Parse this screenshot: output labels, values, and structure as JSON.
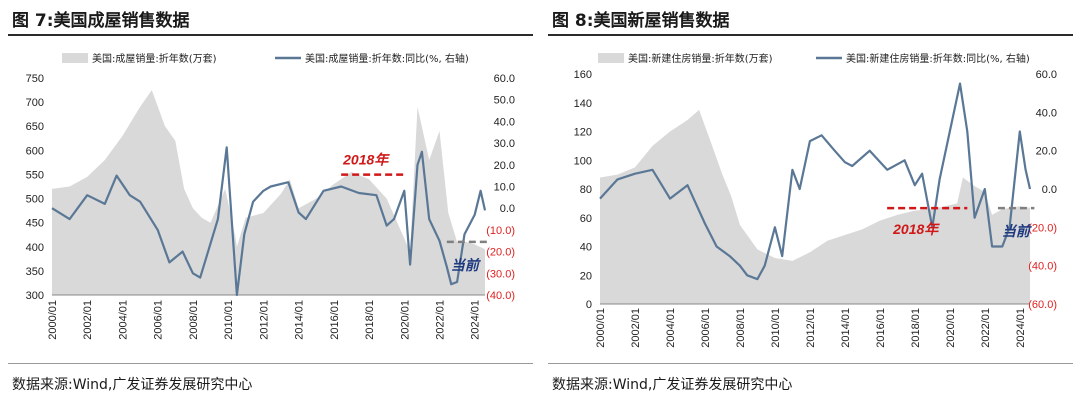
{
  "colors": {
    "line": "#5a7896",
    "area": "#d9d9d9",
    "anno_red": "#d01818",
    "anno_gray": "#808080",
    "anno_navy": "#1f3a80",
    "negative_tick": "#e02020"
  },
  "figures": [
    {
      "title": "图 7:美国成屋销售数据",
      "source": "数据来源:Wind,广发证券发展研究中心",
      "legend": [
        "美国:成屋销量:折年数(万套)",
        "美国:成屋销量:折年数:同比(%, 右轴)"
      ],
      "annotations": [
        "2018年",
        "当前"
      ],
      "x_tick_labels": [
        "2000/01",
        "2002/01",
        "2004/01",
        "2006/01",
        "2008/01",
        "2010/01",
        "2012/01",
        "2014/01",
        "2016/01",
        "2018/01",
        "2020/01",
        "2022/01",
        "2024/01"
      ],
      "y_left_tick_labels": [
        "750",
        "700",
        "650",
        "600",
        "550",
        "500",
        "450",
        "400",
        "350",
        "300"
      ],
      "y_right_tick_labels": [
        "60.0",
        "50.0",
        "40.0",
        "30.0",
        "20.0",
        "10.0",
        "0.0",
        "(10.0)",
        "(20.0)",
        "(30.0)",
        "(40.0)"
      ]
    },
    {
      "title": "图 8:美国新屋销售数据",
      "source": "数据来源:Wind,广发证券发展研究中心",
      "legend": [
        "美国:新建住房销量:折年数(万套)",
        "美国:新建住房销量:折年数:同比(%, 右轴)"
      ],
      "annotations": [
        "2018年",
        "当前"
      ],
      "x_tick_labels": [
        "2000/01",
        "2002/01",
        "2004/01",
        "2006/01",
        "2008/01",
        "2010/01",
        "2012/01",
        "2014/01",
        "2016/01",
        "2018/01",
        "2020/01",
        "2022/01",
        "2024/01"
      ],
      "y_left_tick_labels": [
        "160",
        "140",
        "120",
        "100",
        "80",
        "60",
        "40",
        "20",
        "0"
      ],
      "y_right_tick_labels": [
        "60.0",
        "40.0",
        "20.0",
        "0.0",
        "(20.0)",
        "(40.0)",
        "(60.0)"
      ]
    }
  ],
  "chart_data": [
    {
      "type": "area",
      "x_range": [
        "2000/01",
        "2024/08"
      ],
      "ylim_left": [
        300,
        750
      ],
      "ylim_right": [
        -40,
        60
      ],
      "series": [
        {
          "name": "美国:成屋销量:折年数(万套)",
          "axis": "left",
          "type": "area",
          "x": [
            "2000/01",
            "2001/01",
            "2002/01",
            "2003/01",
            "2004/01",
            "2005/01",
            "2005/09",
            "2006/06",
            "2007/01",
            "2007/07",
            "2008/01",
            "2008/07",
            "2009/01",
            "2009/11",
            "2010/06",
            "2010/07",
            "2011/01",
            "2012/01",
            "2013/01",
            "2013/07",
            "2014/01",
            "2015/01",
            "2016/01",
            "2017/01",
            "2018/01",
            "2019/01",
            "2020/05",
            "2020/10",
            "2021/06",
            "2022/01",
            "2022/07",
            "2023/01",
            "2023/07",
            "2024/01",
            "2024/08"
          ],
          "values": [
            520,
            525,
            545,
            580,
            630,
            690,
            725,
            650,
            620,
            520,
            480,
            460,
            450,
            520,
            420,
            400,
            460,
            470,
            510,
            540,
            480,
            500,
            530,
            555,
            540,
            500,
            390,
            690,
            580,
            640,
            470,
            410,
            410,
            405,
            395
          ]
        },
        {
          "name": "美国:成屋销量:折年数:同比(%, 右轴)",
          "axis": "right",
          "type": "line",
          "x": [
            "2000/01",
            "2001/01",
            "2002/01",
            "2003/01",
            "2003/09",
            "2004/06",
            "2005/01",
            "2006/01",
            "2006/09",
            "2007/06",
            "2008/01",
            "2008/06",
            "2009/06",
            "2009/12",
            "2010/07",
            "2010/12",
            "2011/06",
            "2012/01",
            "2012/06",
            "2013/06",
            "2014/01",
            "2014/06",
            "2015/06",
            "2016/06",
            "2017/06",
            "2018/06",
            "2019/01",
            "2019/06",
            "2020/01",
            "2020/05",
            "2020/10",
            "2021/01",
            "2021/06",
            "2022/01",
            "2022/06",
            "2022/09",
            "2023/01",
            "2023/06",
            "2024/01",
            "2024/05",
            "2024/08"
          ],
          "values": [
            0,
            -5,
            6,
            2,
            15,
            6,
            3,
            -10,
            -25,
            -20,
            -30,
            -32,
            -5,
            28,
            -40,
            -12,
            3,
            8,
            10,
            12,
            -2,
            -5,
            8,
            10,
            7,
            6,
            -8,
            -5,
            8,
            -26,
            20,
            26,
            -5,
            -15,
            -27,
            -35,
            -34,
            -12,
            -3,
            8,
            -1
          ]
        }
      ],
      "annotations": [
        {
          "text": "2018年",
          "x_start": "2016/06",
          "x_end": "2020/01",
          "y_right": 15.5
        },
        {
          "text": "当前",
          "x_start": "2022/06",
          "x_end": "2024/11",
          "y_right": -15.5
        }
      ]
    },
    {
      "type": "area",
      "x_range": [
        "2000/01",
        "2024/08"
      ],
      "ylim_left": [
        0,
        160
      ],
      "ylim_right": [
        -60,
        60
      ],
      "series": [
        {
          "name": "美国:新建住房销量:折年数(万套)",
          "axis": "left",
          "type": "area",
          "x": [
            "2000/01",
            "2001/01",
            "2002/01",
            "2003/01",
            "2004/01",
            "2005/01",
            "2005/09",
            "2006/06",
            "2007/01",
            "2007/07",
            "2008/01",
            "2009/01",
            "2010/01",
            "2011/01",
            "2012/01",
            "2013/01",
            "2014/01",
            "2015/01",
            "2016/01",
            "2017/01",
            "2018/01",
            "2019/01",
            "2020/06",
            "2020/10",
            "2021/06",
            "2022/01",
            "2022/06",
            "2023/01",
            "2024/01",
            "2024/08"
          ],
          "values": [
            88,
            90,
            95,
            110,
            120,
            128,
            135,
            110,
            90,
            75,
            55,
            38,
            32,
            30,
            36,
            44,
            48,
            52,
            58,
            62,
            65,
            66,
            70,
            88,
            82,
            78,
            62,
            66,
            68,
            67
          ],
          "note": "values approximate"
        },
        {
          "name": "美国:新建住房销量:折年数:同比(%, 右轴)",
          "axis": "right",
          "type": "line",
          "x": [
            "2000/01",
            "2001/01",
            "2002/01",
            "2003/01",
            "2004/01",
            "2005/01",
            "2006/01",
            "2006/09",
            "2007/06",
            "2008/01",
            "2008/06",
            "2009/01",
            "2009/06",
            "2010/01",
            "2010/06",
            "2011/01",
            "2011/06",
            "2012/01",
            "2012/09",
            "2013/06",
            "2014/01",
            "2014/06",
            "2015/06",
            "2016/06",
            "2017/06",
            "2018/01",
            "2018/06",
            "2019/01",
            "2019/06",
            "2020/01",
            "2020/08",
            "2021/01",
            "2021/06",
            "2022/01",
            "2022/06",
            "2023/01",
            "2023/06",
            "2024/01",
            "2024/05",
            "2024/08"
          ],
          "values": [
            -5,
            5,
            8,
            10,
            -5,
            2,
            -18,
            -30,
            -35,
            -40,
            -45,
            -47,
            -40,
            -20,
            -35,
            10,
            0,
            25,
            28,
            20,
            14,
            12,
            20,
            10,
            15,
            2,
            8,
            -20,
            5,
            30,
            55,
            30,
            -15,
            0,
            -30,
            -30,
            -20,
            30,
            10,
            0
          ],
          "note": "values approximate"
        }
      ],
      "annotations": [
        {
          "text": "2018年",
          "x_start": "2016/06",
          "x_end": "2021/01",
          "y_right": -10
        },
        {
          "text": "当前",
          "x_start": "2022/10",
          "x_end": "2024/11",
          "y_right": -10
        }
      ]
    }
  ]
}
